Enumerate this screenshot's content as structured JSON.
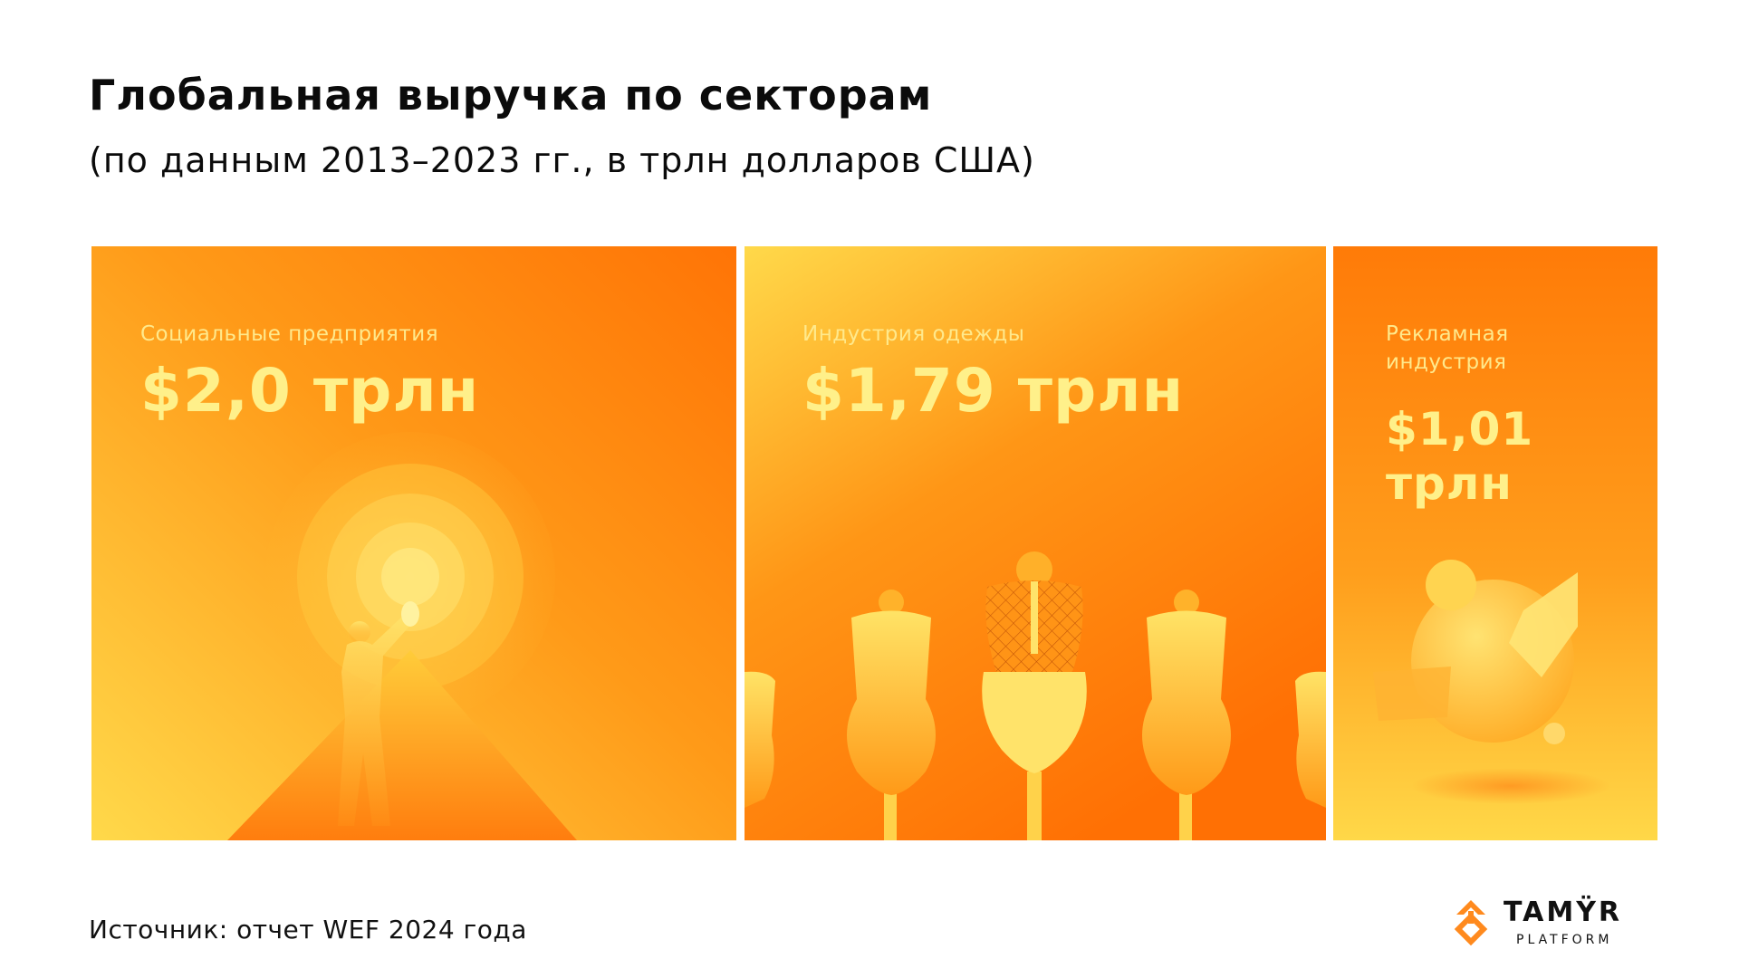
{
  "header": {
    "title": "Глобальная выручка по секторам",
    "subtitle": "(по данным 2013–2023 гг., в трлн долларов США)"
  },
  "panels": [
    {
      "label": "Социальные предприятия",
      "value": "$2,0 трлн",
      "illustration": "person-with-megaphone-icon"
    },
    {
      "label": "Индустрия одежды",
      "value": "$1,79 трлн",
      "illustration": "mannequins-icon"
    },
    {
      "label": "Рекламная индустрия",
      "value": "$1,01 трлн",
      "illustration": "abstract-shapes-icon"
    }
  ],
  "footer": {
    "source": "Источник: отчет WEF 2024 года",
    "brand_name": "TAMŸR",
    "brand_sub": "PLATFORM"
  },
  "colors": {
    "panel_orange": "#ff7a0a",
    "panel_yellow": "#ffd84a",
    "text_highlight": "#fff08a",
    "brand_accent": "#ff8a1e"
  }
}
